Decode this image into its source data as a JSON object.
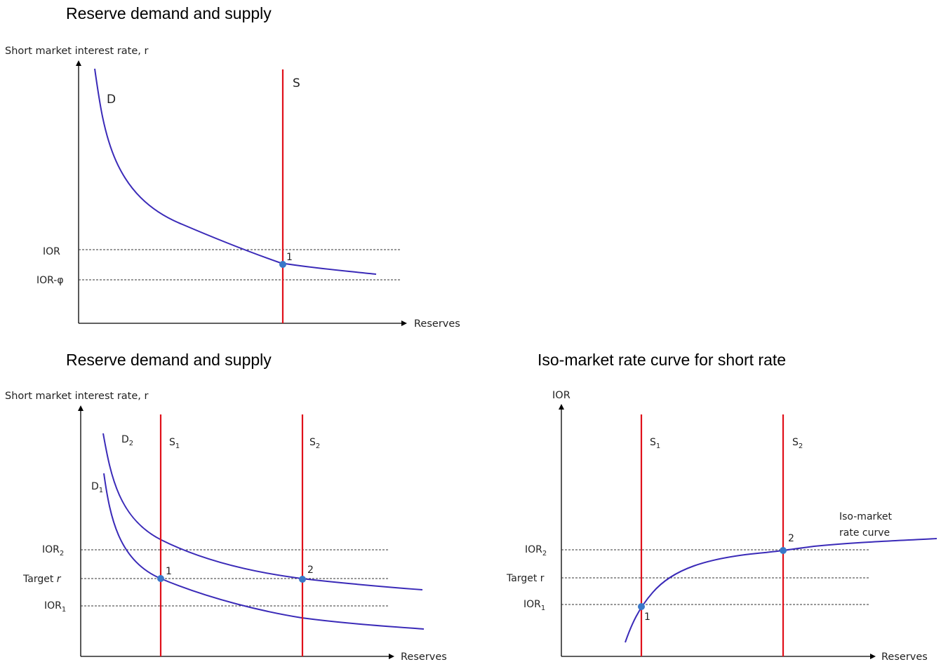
{
  "panel_top": {
    "title": "Reserve demand and supply",
    "y_axis_label": "Short market interest rate, r",
    "x_axis_label": "Reserves",
    "demand_label": "D",
    "supply_label": "S",
    "ior_label": "IOR",
    "ior_phi_label": "IOR-φ",
    "point_label": "1"
  },
  "panel_bottom_left": {
    "title": "Reserve demand and supply",
    "y_axis_label": "Short market interest rate, r",
    "x_axis_label": "Reserves",
    "d2": {
      "base": "D",
      "sub": "2"
    },
    "d1": {
      "base": "D",
      "sub": "1"
    },
    "s1": {
      "base": "S",
      "sub": "1"
    },
    "s2": {
      "base": "S",
      "sub": "2"
    },
    "ior2": {
      "base": "IOR",
      "sub": "2"
    },
    "target": {
      "base": "Target ",
      "italic": "r"
    },
    "ior1": {
      "base": "IOR",
      "sub": "1"
    },
    "point1_label": "1",
    "point2_label": "2"
  },
  "panel_bottom_right": {
    "title": "Iso-market rate curve for short rate",
    "y_axis_label": "IOR",
    "x_axis_label": "Reserves",
    "s1": {
      "base": "S",
      "sub": "1"
    },
    "s2": {
      "base": "S",
      "sub": "2"
    },
    "ior2": {
      "base": "IOR",
      "sub": "2"
    },
    "target_label": "Target r",
    "ior1": {
      "base": "IOR",
      "sub": "1"
    },
    "curve_label_line1": "Iso-market",
    "curve_label_line2": "rate curve",
    "point1_label": "1",
    "point2_label": "2"
  },
  "colors": {
    "supply": "#e0101a",
    "curve": "#3a2ab8",
    "point": "#3a78c8"
  }
}
